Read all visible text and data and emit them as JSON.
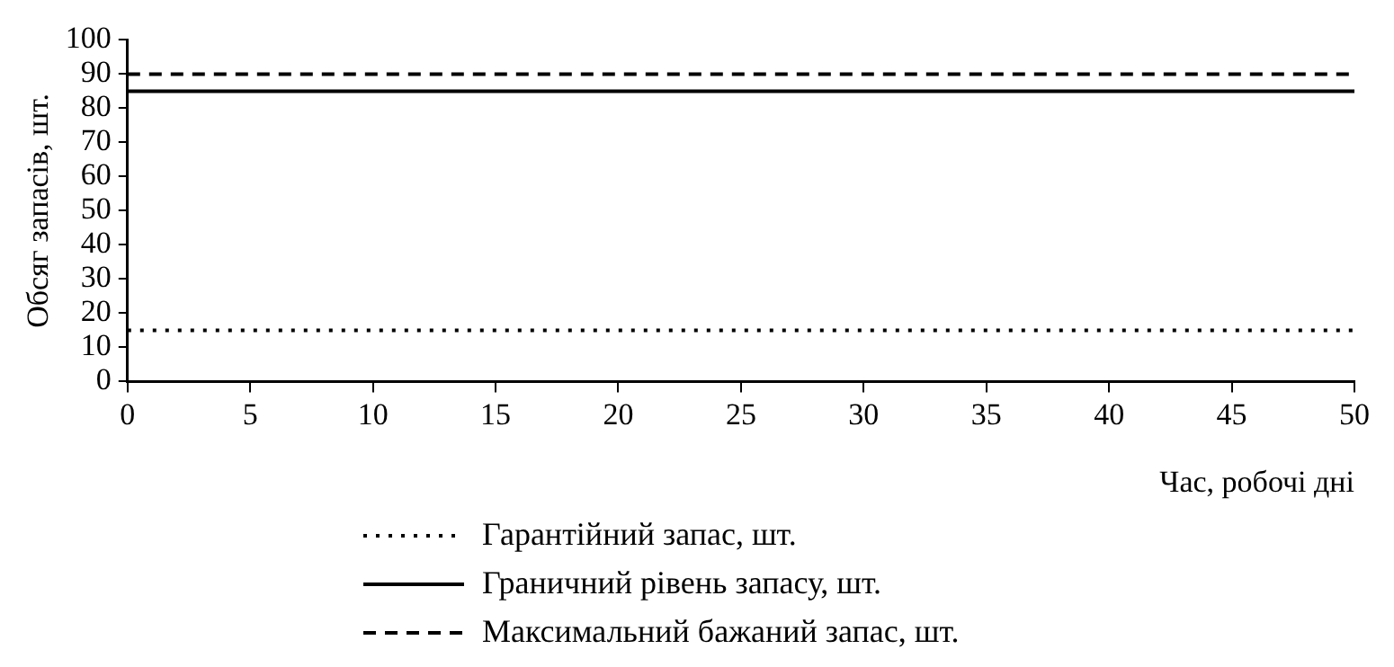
{
  "chart_data": {
    "type": "line",
    "xlabel": "Час, робочі дні",
    "ylabel": "Обсяг запасів, шт.",
    "x": [
      0,
      50
    ],
    "xlim": [
      0,
      50
    ],
    "xticks": [
      0,
      5,
      10,
      15,
      20,
      25,
      30,
      35,
      40,
      45,
      50
    ],
    "ylim": [
      0,
      100
    ],
    "yticks": [
      0,
      10,
      20,
      30,
      40,
      50,
      60,
      70,
      80,
      90,
      100
    ],
    "grid": false,
    "legend": "bottom",
    "marker": "none",
    "series": [
      {
        "name": "Гарантійний запас, шт.",
        "color": "#000000",
        "values": [
          15,
          15
        ],
        "line_style": "dotted"
      },
      {
        "name": "Граничний рівень запасу, шт.",
        "color": "#000000",
        "values": [
          85,
          85
        ],
        "line_style": "solid"
      },
      {
        "name": "Максимальний бажаний запас, шт.",
        "color": "#000000",
        "values": [
          90,
          90
        ],
        "line_style": "dashed"
      }
    ]
  }
}
